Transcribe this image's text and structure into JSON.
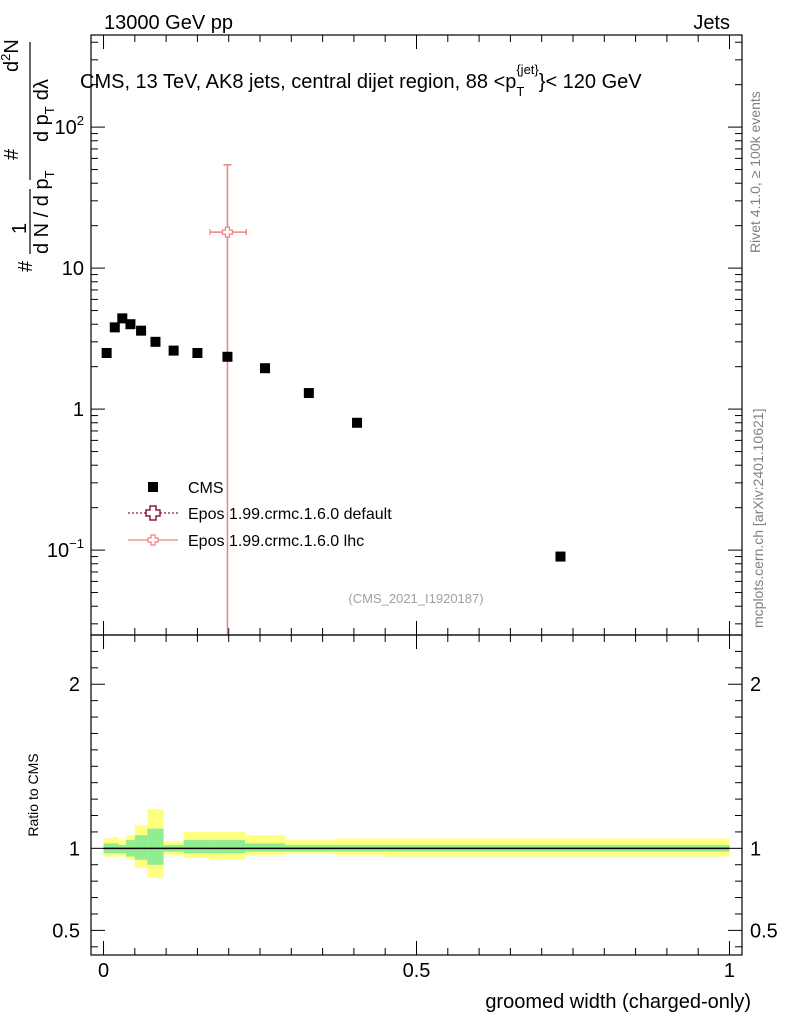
{
  "header": {
    "left": "13000 GeV pp",
    "right": "Jets"
  },
  "side_labels": {
    "rivet": "Rivet 4.1.0, ≥ 100k events",
    "mcplots": "mcplots.cern.ch [arXiv:2401.10621]"
  },
  "colors": {
    "data": "#000000",
    "epos_default": "#8b1a4a",
    "epos_lhc": "#f08080",
    "band_inner": "#90ee90",
    "band_outer": "#ffff80"
  },
  "chart_data": [
    {
      "type": "scatter",
      "panel": "main",
      "title": "CMS, 13 TeV, AK8 jets, central dijet region, 88 <p_T^{jet}< 120 GeV",
      "title_parts": {
        "a": "CMS, 13 TeV, AK8 jets, central dijet region, 88 <p",
        "sub": "T",
        "sup": "{jet}",
        "b": "}< 120 GeV"
      },
      "ylabel_parts": {
        "sharp": "#",
        "one": "1",
        "dN": "d N / d p",
        "T": "T",
        "d2N": "d",
        "two": "2",
        "N": "N",
        "dpT": "d p",
        "dl": "dλ"
      },
      "yscale": "log",
      "xlim": [
        -0.02,
        1.02
      ],
      "ylim": [
        0.025,
        450
      ],
      "y_ticks": [
        {
          "value": 0.1,
          "base": "10",
          "exp": "−1"
        },
        {
          "value": 1,
          "base": "1",
          "exp": ""
        },
        {
          "value": 10,
          "base": "10",
          "exp": ""
        },
        {
          "value": 100,
          "base": "10",
          "exp": "2"
        }
      ],
      "series": [
        {
          "name": "CMS",
          "marker": "square",
          "points": [
            {
              "x": 0.005,
              "y": 2.5
            },
            {
              "x": 0.018,
              "y": 3.8
            },
            {
              "x": 0.03,
              "y": 4.4
            },
            {
              "x": 0.043,
              "y": 4.0
            },
            {
              "x": 0.06,
              "y": 3.6
            },
            {
              "x": 0.083,
              "y": 3.0
            },
            {
              "x": 0.112,
              "y": 2.6
            },
            {
              "x": 0.15,
              "y": 2.5
            },
            {
              "x": 0.198,
              "y": 2.35
            },
            {
              "x": 0.258,
              "y": 1.95
            },
            {
              "x": 0.328,
              "y": 1.3
            },
            {
              "x": 0.405,
              "y": 0.8
            },
            {
              "x": 0.73,
              "y": 0.09
            }
          ]
        },
        {
          "name": "Epos 1.99.crmc.1.6.0 default",
          "marker": "open-cross",
          "style": "dotted",
          "points": []
        },
        {
          "name": "Epos 1.99.crmc.1.6.0 lhc",
          "marker": "open-cross",
          "style": "solid",
          "points": [
            {
              "x": 0.198,
              "y": 18,
              "xerr": [
                0.17,
                0.228
              ],
              "yerr": [
                0.001,
                36
              ]
            }
          ]
        }
      ],
      "legend_position": "lower-left",
      "annotation": "(CMS_2021_I1920187)"
    },
    {
      "type": "ratio",
      "panel": "ratio",
      "ylabel": "Ratio to CMS",
      "xlabel": "groomed width (charged-only)",
      "xlim": [
        -0.02,
        1.02
      ],
      "ylim": [
        0.35,
        2.3
      ],
      "x_ticks": [
        {
          "value": 0,
          "label": "0"
        },
        {
          "value": 0.5,
          "label": "0.5"
        },
        {
          "value": 1,
          "label": "1"
        }
      ],
      "y_ticks": [
        {
          "value": 0.5,
          "label": "0.5"
        },
        {
          "value": 1,
          "label": "1"
        },
        {
          "value": 2,
          "label": "2"
        }
      ],
      "reference_line": 1,
      "bins": [
        {
          "x0": 0.0,
          "x1": 0.012,
          "inner": [
            0.97,
            1.03
          ],
          "outer": [
            0.95,
            1.06
          ]
        },
        {
          "x0": 0.012,
          "x1": 0.024,
          "inner": [
            0.97,
            1.03
          ],
          "outer": [
            0.95,
            1.07
          ]
        },
        {
          "x0": 0.024,
          "x1": 0.036,
          "inner": [
            0.97,
            1.02
          ],
          "outer": [
            0.95,
            1.05
          ]
        },
        {
          "x0": 0.036,
          "x1": 0.05,
          "inner": [
            0.95,
            1.05
          ],
          "outer": [
            0.93,
            1.08
          ]
        },
        {
          "x0": 0.05,
          "x1": 0.07,
          "inner": [
            0.93,
            1.08
          ],
          "outer": [
            0.88,
            1.14
          ]
        },
        {
          "x0": 0.07,
          "x1": 0.096,
          "inner": [
            0.9,
            1.12
          ],
          "outer": [
            0.82,
            1.24
          ]
        },
        {
          "x0": 0.096,
          "x1": 0.128,
          "inner": [
            0.98,
            1.02
          ],
          "outer": [
            0.96,
            1.04
          ]
        },
        {
          "x0": 0.128,
          "x1": 0.17,
          "inner": [
            0.97,
            1.05
          ],
          "outer": [
            0.94,
            1.1
          ]
        },
        {
          "x0": 0.17,
          "x1": 0.226,
          "inner": [
            0.97,
            1.05
          ],
          "outer": [
            0.93,
            1.1
          ]
        },
        {
          "x0": 0.226,
          "x1": 0.29,
          "inner": [
            0.98,
            1.03
          ],
          "outer": [
            0.96,
            1.08
          ]
        },
        {
          "x0": 0.29,
          "x1": 0.37,
          "inner": [
            0.98,
            1.02
          ],
          "outer": [
            0.97,
            1.05
          ]
        },
        {
          "x0": 0.37,
          "x1": 0.45,
          "inner": [
            0.98,
            1.02
          ],
          "outer": [
            0.96,
            1.06
          ]
        },
        {
          "x0": 0.45,
          "x1": 1.0,
          "inner": [
            0.98,
            1.02
          ],
          "outer": [
            0.95,
            1.06
          ]
        }
      ]
    }
  ]
}
